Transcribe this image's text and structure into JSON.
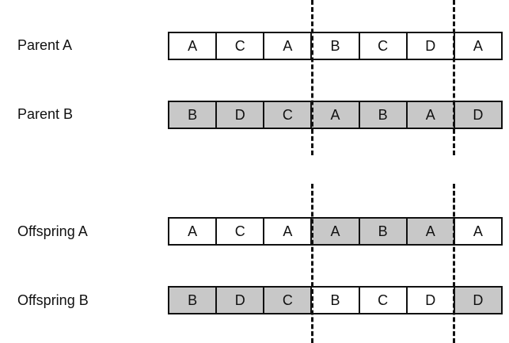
{
  "colors": {
    "parent_a_fill": "#ffffff",
    "parent_b_fill": "#c8c8c8",
    "line": "#111111"
  },
  "rows": [
    {
      "label": "Parent A",
      "genes": [
        {
          "value": "A",
          "source": "a"
        },
        {
          "value": "C",
          "source": "a"
        },
        {
          "value": "A",
          "source": "a"
        },
        {
          "value": "B",
          "source": "a"
        },
        {
          "value": "C",
          "source": "a"
        },
        {
          "value": "D",
          "source": "a"
        },
        {
          "value": "A",
          "source": "a"
        }
      ]
    },
    {
      "label": "Parent B",
      "genes": [
        {
          "value": "B",
          "source": "b"
        },
        {
          "value": "D",
          "source": "b"
        },
        {
          "value": "C",
          "source": "b"
        },
        {
          "value": "A",
          "source": "b"
        },
        {
          "value": "B",
          "source": "b"
        },
        {
          "value": "A",
          "source": "b"
        },
        {
          "value": "D",
          "source": "b"
        }
      ]
    },
    {
      "label": "Offspring A",
      "genes": [
        {
          "value": "A",
          "source": "a"
        },
        {
          "value": "C",
          "source": "a"
        },
        {
          "value": "A",
          "source": "a"
        },
        {
          "value": "A",
          "source": "b"
        },
        {
          "value": "B",
          "source": "b"
        },
        {
          "value": "A",
          "source": "b"
        },
        {
          "value": "A",
          "source": "a"
        }
      ]
    },
    {
      "label": "Offspring B",
      "genes": [
        {
          "value": "B",
          "source": "b"
        },
        {
          "value": "D",
          "source": "b"
        },
        {
          "value": "C",
          "source": "b"
        },
        {
          "value": "B",
          "source": "a"
        },
        {
          "value": "C",
          "source": "a"
        },
        {
          "value": "D",
          "source": "a"
        },
        {
          "value": "D",
          "source": "b"
        }
      ]
    }
  ]
}
